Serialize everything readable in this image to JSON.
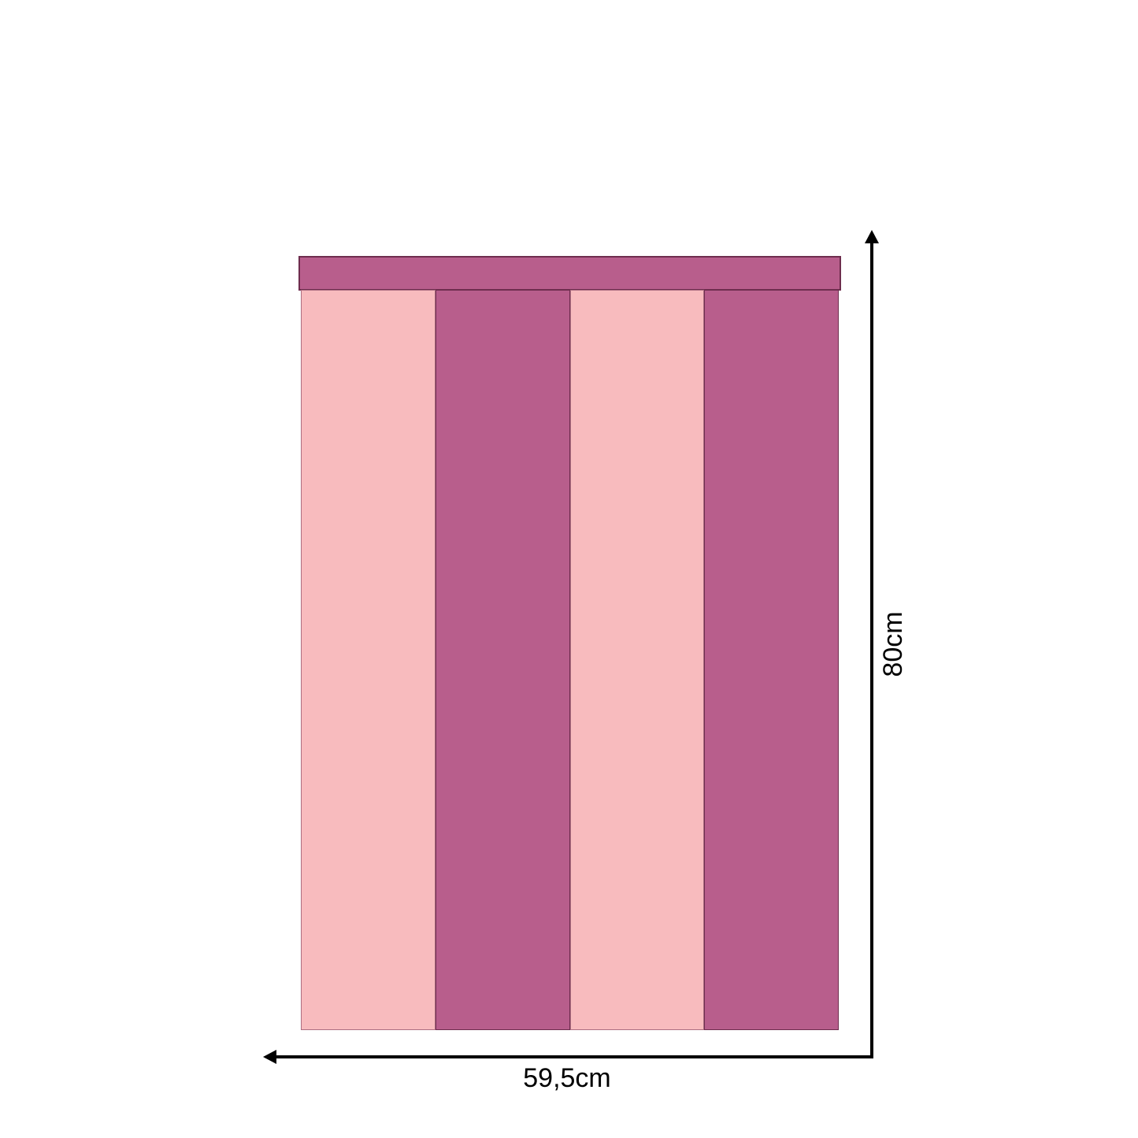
{
  "colors": {
    "stripe_light": "#f8bbbe",
    "stripe_dark": "#b85e8c",
    "outline": "#6e2d4e",
    "dimension": "#000000",
    "background": "#ffffff"
  },
  "panel": {
    "band_tone": "dark",
    "stripes": [
      {
        "tone": "light"
      },
      {
        "tone": "dark"
      },
      {
        "tone": "light"
      },
      {
        "tone": "dark"
      }
    ]
  },
  "dimensions": {
    "height_label": "80cm",
    "width_label": "59,5cm"
  }
}
